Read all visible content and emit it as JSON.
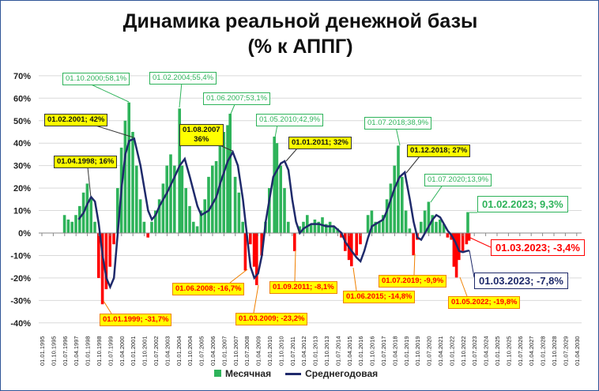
{
  "chart_data": {
    "type": "bar+line",
    "title": "Динамика реальной денежной базы",
    "subtitle": "(% к АППГ)",
    "ylim": [
      -40,
      70
    ],
    "yticks": [
      70,
      60,
      50,
      40,
      30,
      20,
      10,
      0,
      -10,
      -20,
      -30,
      -40
    ],
    "ytick_format": "%",
    "grid": true,
    "legend": "bottom",
    "xtick_labels": [
      "01.01.1995",
      "01.10.1995",
      "01.07.1996",
      "01.04.1997",
      "01.01.1998",
      "01.10.1998",
      "01.07.1999",
      "01.04.2000",
      "01.01.2001",
      "01.10.2001",
      "01.07.2002",
      "01.04.2003",
      "01.01.2004",
      "01.10.2004",
      "01.07.2005",
      "01.04.2006",
      "01.01.2007",
      "01.10.2007",
      "01.07.2008",
      "01.04.2009",
      "01.01.2010",
      "01.10.2010",
      "01.07.2011",
      "01.04.2012",
      "01.01.2013",
      "01.10.2013",
      "01.07.2014",
      "01.04.2015",
      "01.01.2016",
      "01.10.2016",
      "01.07.2017",
      "01.04.2018",
      "01.01.2019",
      "01.10.2019",
      "01.07.2020",
      "01.04.2021",
      "01.01.2022",
      "01.10.2022",
      "01.07.2023",
      "01.04.2024",
      "01.01.2025",
      "01.10.2025",
      "01.07.2026",
      "01.04.2027",
      "01.01.2028",
      "01.10.2028",
      "01.07.2029",
      "01.04.2030"
    ],
    "series": [
      {
        "name": "Месячная",
        "type": "bar",
        "color_pos": "#2eb35a",
        "color_neg": "#ff0000",
        "points": [
          [
            "1996-07",
            8
          ],
          [
            "1996-10",
            6
          ],
          [
            "1997-01",
            5
          ],
          [
            "1997-04",
            8
          ],
          [
            "1997-07",
            12
          ],
          [
            "1997-10",
            18
          ],
          [
            "1998-01",
            22
          ],
          [
            "1998-04",
            16
          ],
          [
            "1998-07",
            5
          ],
          [
            "1998-10",
            -20
          ],
          [
            "1999-01",
            -31.7
          ],
          [
            "1999-04",
            -25
          ],
          [
            "1999-07",
            -15
          ],
          [
            "1999-10",
            -5
          ],
          [
            "2000-01",
            20
          ],
          [
            "2000-04",
            38
          ],
          [
            "2000-07",
            50
          ],
          [
            "2000-10",
            58.1
          ],
          [
            "2001-01",
            45
          ],
          [
            "2001-04",
            30
          ],
          [
            "2001-07",
            15
          ],
          [
            "2001-10",
            5
          ],
          [
            "2002-01",
            -2
          ],
          [
            "2002-04",
            5
          ],
          [
            "2002-07",
            10
          ],
          [
            "2002-10",
            15
          ],
          [
            "2003-01",
            22
          ],
          [
            "2003-04",
            30
          ],
          [
            "2003-07",
            35
          ],
          [
            "2003-10",
            30
          ],
          [
            "2004-02",
            55.4
          ],
          [
            "2004-04",
            30
          ],
          [
            "2004-07",
            20
          ],
          [
            "2004-10",
            12
          ],
          [
            "2005-01",
            5
          ],
          [
            "2005-04",
            3
          ],
          [
            "2005-07",
            10
          ],
          [
            "2005-10",
            15
          ],
          [
            "2006-01",
            25
          ],
          [
            "2006-04",
            30
          ],
          [
            "2006-07",
            32
          ],
          [
            "2006-10",
            40
          ],
          [
            "2007-01",
            45
          ],
          [
            "2007-04",
            48
          ],
          [
            "2007-06",
            53.1
          ],
          [
            "2007-10",
            25
          ],
          [
            "2008-01",
            18
          ],
          [
            "2008-04",
            5
          ],
          [
            "2008-06",
            -16.7
          ],
          [
            "2008-10",
            -5
          ],
          [
            "2009-01",
            -15
          ],
          [
            "2009-03",
            -23.2
          ],
          [
            "2009-07",
            -10
          ],
          [
            "2009-10",
            5
          ],
          [
            "2010-01",
            20
          ],
          [
            "2010-05",
            42.9
          ],
          [
            "2010-07",
            40
          ],
          [
            "2010-10",
            30
          ],
          [
            "2011-01",
            20
          ],
          [
            "2011-04",
            5
          ],
          [
            "2011-09",
            -8.1
          ],
          [
            "2012-01",
            3
          ],
          [
            "2012-04",
            5
          ],
          [
            "2012-07",
            8
          ],
          [
            "2012-10",
            4
          ],
          [
            "2013-01",
            6
          ],
          [
            "2013-04",
            5
          ],
          [
            "2013-07",
            7
          ],
          [
            "2013-10",
            4
          ],
          [
            "2014-01",
            5
          ],
          [
            "2014-04",
            3
          ],
          [
            "2014-07",
            2
          ],
          [
            "2014-10",
            -2
          ],
          [
            "2015-01",
            -8
          ],
          [
            "2015-04",
            -12
          ],
          [
            "2015-06",
            -14.8
          ],
          [
            "2015-10",
            -10
          ],
          [
            "2016-01",
            -5
          ],
          [
            "2016-04",
            0
          ],
          [
            "2016-07",
            8
          ],
          [
            "2016-10",
            10
          ],
          [
            "2017-01",
            5
          ],
          [
            "2017-04",
            5
          ],
          [
            "2017-07",
            8
          ],
          [
            "2017-10",
            15
          ],
          [
            "2018-01",
            22
          ],
          [
            "2018-04",
            30
          ],
          [
            "2018-07",
            38.9
          ],
          [
            "2018-10",
            25
          ],
          [
            "2019-01",
            10
          ],
          [
            "2019-04",
            2
          ],
          [
            "2019-07",
            -9.9
          ],
          [
            "2019-10",
            -3
          ],
          [
            "2020-01",
            5
          ],
          [
            "2020-04",
            10
          ],
          [
            "2020-07",
            13.9
          ],
          [
            "2020-10",
            8
          ],
          [
            "2021-01",
            5
          ],
          [
            "2021-04",
            6
          ],
          [
            "2021-07",
            4
          ],
          [
            "2021-10",
            -2
          ],
          [
            "2022-01",
            -3
          ],
          [
            "2022-03",
            -15
          ],
          [
            "2022-05",
            -19.8
          ],
          [
            "2022-07",
            -12
          ],
          [
            "2022-10",
            -8
          ],
          [
            "2023-01",
            -5
          ],
          [
            "2023-02",
            9.3
          ],
          [
            "2023-03",
            -3.4
          ]
        ]
      },
      {
        "name": "Среднегодовая",
        "type": "line",
        "color": "#1f2a6b",
        "points": [
          [
            "1997-06",
            6
          ],
          [
            "1997-10",
            9
          ],
          [
            "1998-01",
            13
          ],
          [
            "1998-04",
            16
          ],
          [
            "1998-07",
            14
          ],
          [
            "1998-10",
            4
          ],
          [
            "1999-01",
            -10
          ],
          [
            "1999-04",
            -20
          ],
          [
            "1999-07",
            -24
          ],
          [
            "1999-10",
            -20
          ],
          [
            "2000-01",
            0
          ],
          [
            "2000-04",
            20
          ],
          [
            "2000-07",
            35
          ],
          [
            "2000-10",
            41
          ],
          [
            "2001-02",
            42
          ],
          [
            "2001-07",
            30
          ],
          [
            "2002-01",
            10
          ],
          [
            "2002-04",
            6
          ],
          [
            "2002-07",
            8
          ],
          [
            "2002-10",
            12
          ],
          [
            "2003-04",
            18
          ],
          [
            "2003-10",
            25
          ],
          [
            "2004-02",
            30
          ],
          [
            "2004-06",
            33
          ],
          [
            "2004-10",
            25
          ],
          [
            "2005-04",
            12
          ],
          [
            "2005-07",
            8
          ],
          [
            "2005-10",
            9
          ],
          [
            "2006-01",
            10
          ],
          [
            "2006-07",
            16
          ],
          [
            "2006-10",
            22
          ],
          [
            "2007-04",
            32
          ],
          [
            "2007-08",
            36
          ],
          [
            "2007-12",
            30
          ],
          [
            "2008-04",
            15
          ],
          [
            "2008-07",
            0
          ],
          [
            "2008-10",
            -15
          ],
          [
            "2009-01",
            -20
          ],
          [
            "2009-04",
            -18
          ],
          [
            "2009-07",
            -10
          ],
          [
            "2009-10",
            5
          ],
          [
            "2010-04",
            25
          ],
          [
            "2010-10",
            31
          ],
          [
            "2011-01",
            32
          ],
          [
            "2011-04",
            28
          ],
          [
            "2011-07",
            15
          ],
          [
            "2011-10",
            5
          ],
          [
            "2012-01",
            0
          ],
          [
            "2012-04",
            2
          ],
          [
            "2012-10",
            4
          ],
          [
            "2013-04",
            4
          ],
          [
            "2013-10",
            3
          ],
          [
            "2014-04",
            3
          ],
          [
            "2014-10",
            0
          ],
          [
            "2015-01",
            -4
          ],
          [
            "2015-06",
            -8
          ],
          [
            "2015-10",
            -11
          ],
          [
            "2016-01",
            -12.6
          ],
          [
            "2016-04",
            -8
          ],
          [
            "2016-07",
            -2
          ],
          [
            "2016-10",
            3
          ],
          [
            "2017-01",
            4
          ],
          [
            "2017-07",
            6
          ],
          [
            "2017-10",
            10
          ],
          [
            "2018-04",
            20
          ],
          [
            "2018-08",
            25
          ],
          [
            "2018-12",
            27
          ],
          [
            "2019-04",
            15
          ],
          [
            "2019-07",
            5
          ],
          [
            "2019-10",
            -2
          ],
          [
            "2020-01",
            -3
          ],
          [
            "2020-07",
            3
          ],
          [
            "2020-10",
            6
          ],
          [
            "2021-01",
            8
          ],
          [
            "2021-04",
            7
          ],
          [
            "2021-07",
            4
          ],
          [
            "2021-10",
            1
          ],
          [
            "2022-01",
            -1
          ],
          [
            "2022-04",
            -4
          ],
          [
            "2022-07",
            -8
          ],
          [
            "2022-10",
            -8.5
          ],
          [
            "2023-01",
            -8
          ],
          [
            "2023-03",
            -7.8
          ]
        ]
      }
    ],
    "annotations": {
      "a1": "01.10.2000;58,1%",
      "a2": "01.02.2004;55,4%",
      "a3": "01.06.2007;53,1%",
      "a4": "01.05.2010;42,9%",
      "a5": "01.07.2018;38,9%",
      "a6": "01.07.2020;13,9%",
      "a7": "01.02.2023; 9,3%",
      "b1": "01.02.2001; 42%",
      "b2": "01.04.1998; 16%",
      "b3a": "01.08.2007",
      "b3b": "36%",
      "b4": "01.01.2011; 32%",
      "b5": "01.12.2018; 27%",
      "c1": "01.01.1999; -31,7%",
      "c2": "01.06.2008; -16,7%",
      "c3": "01.03.2009; -23,2%",
      "c4": "01.09.2011; -8,1%",
      "c5": "01.06.2015; -14,8%",
      "c6": "01.07.2019; -9,9%",
      "c7": "01.05.2022; -19,8%",
      "d1": "01.03.2023; -3,4%",
      "d2": "01.03.2023; -7,8%"
    }
  }
}
